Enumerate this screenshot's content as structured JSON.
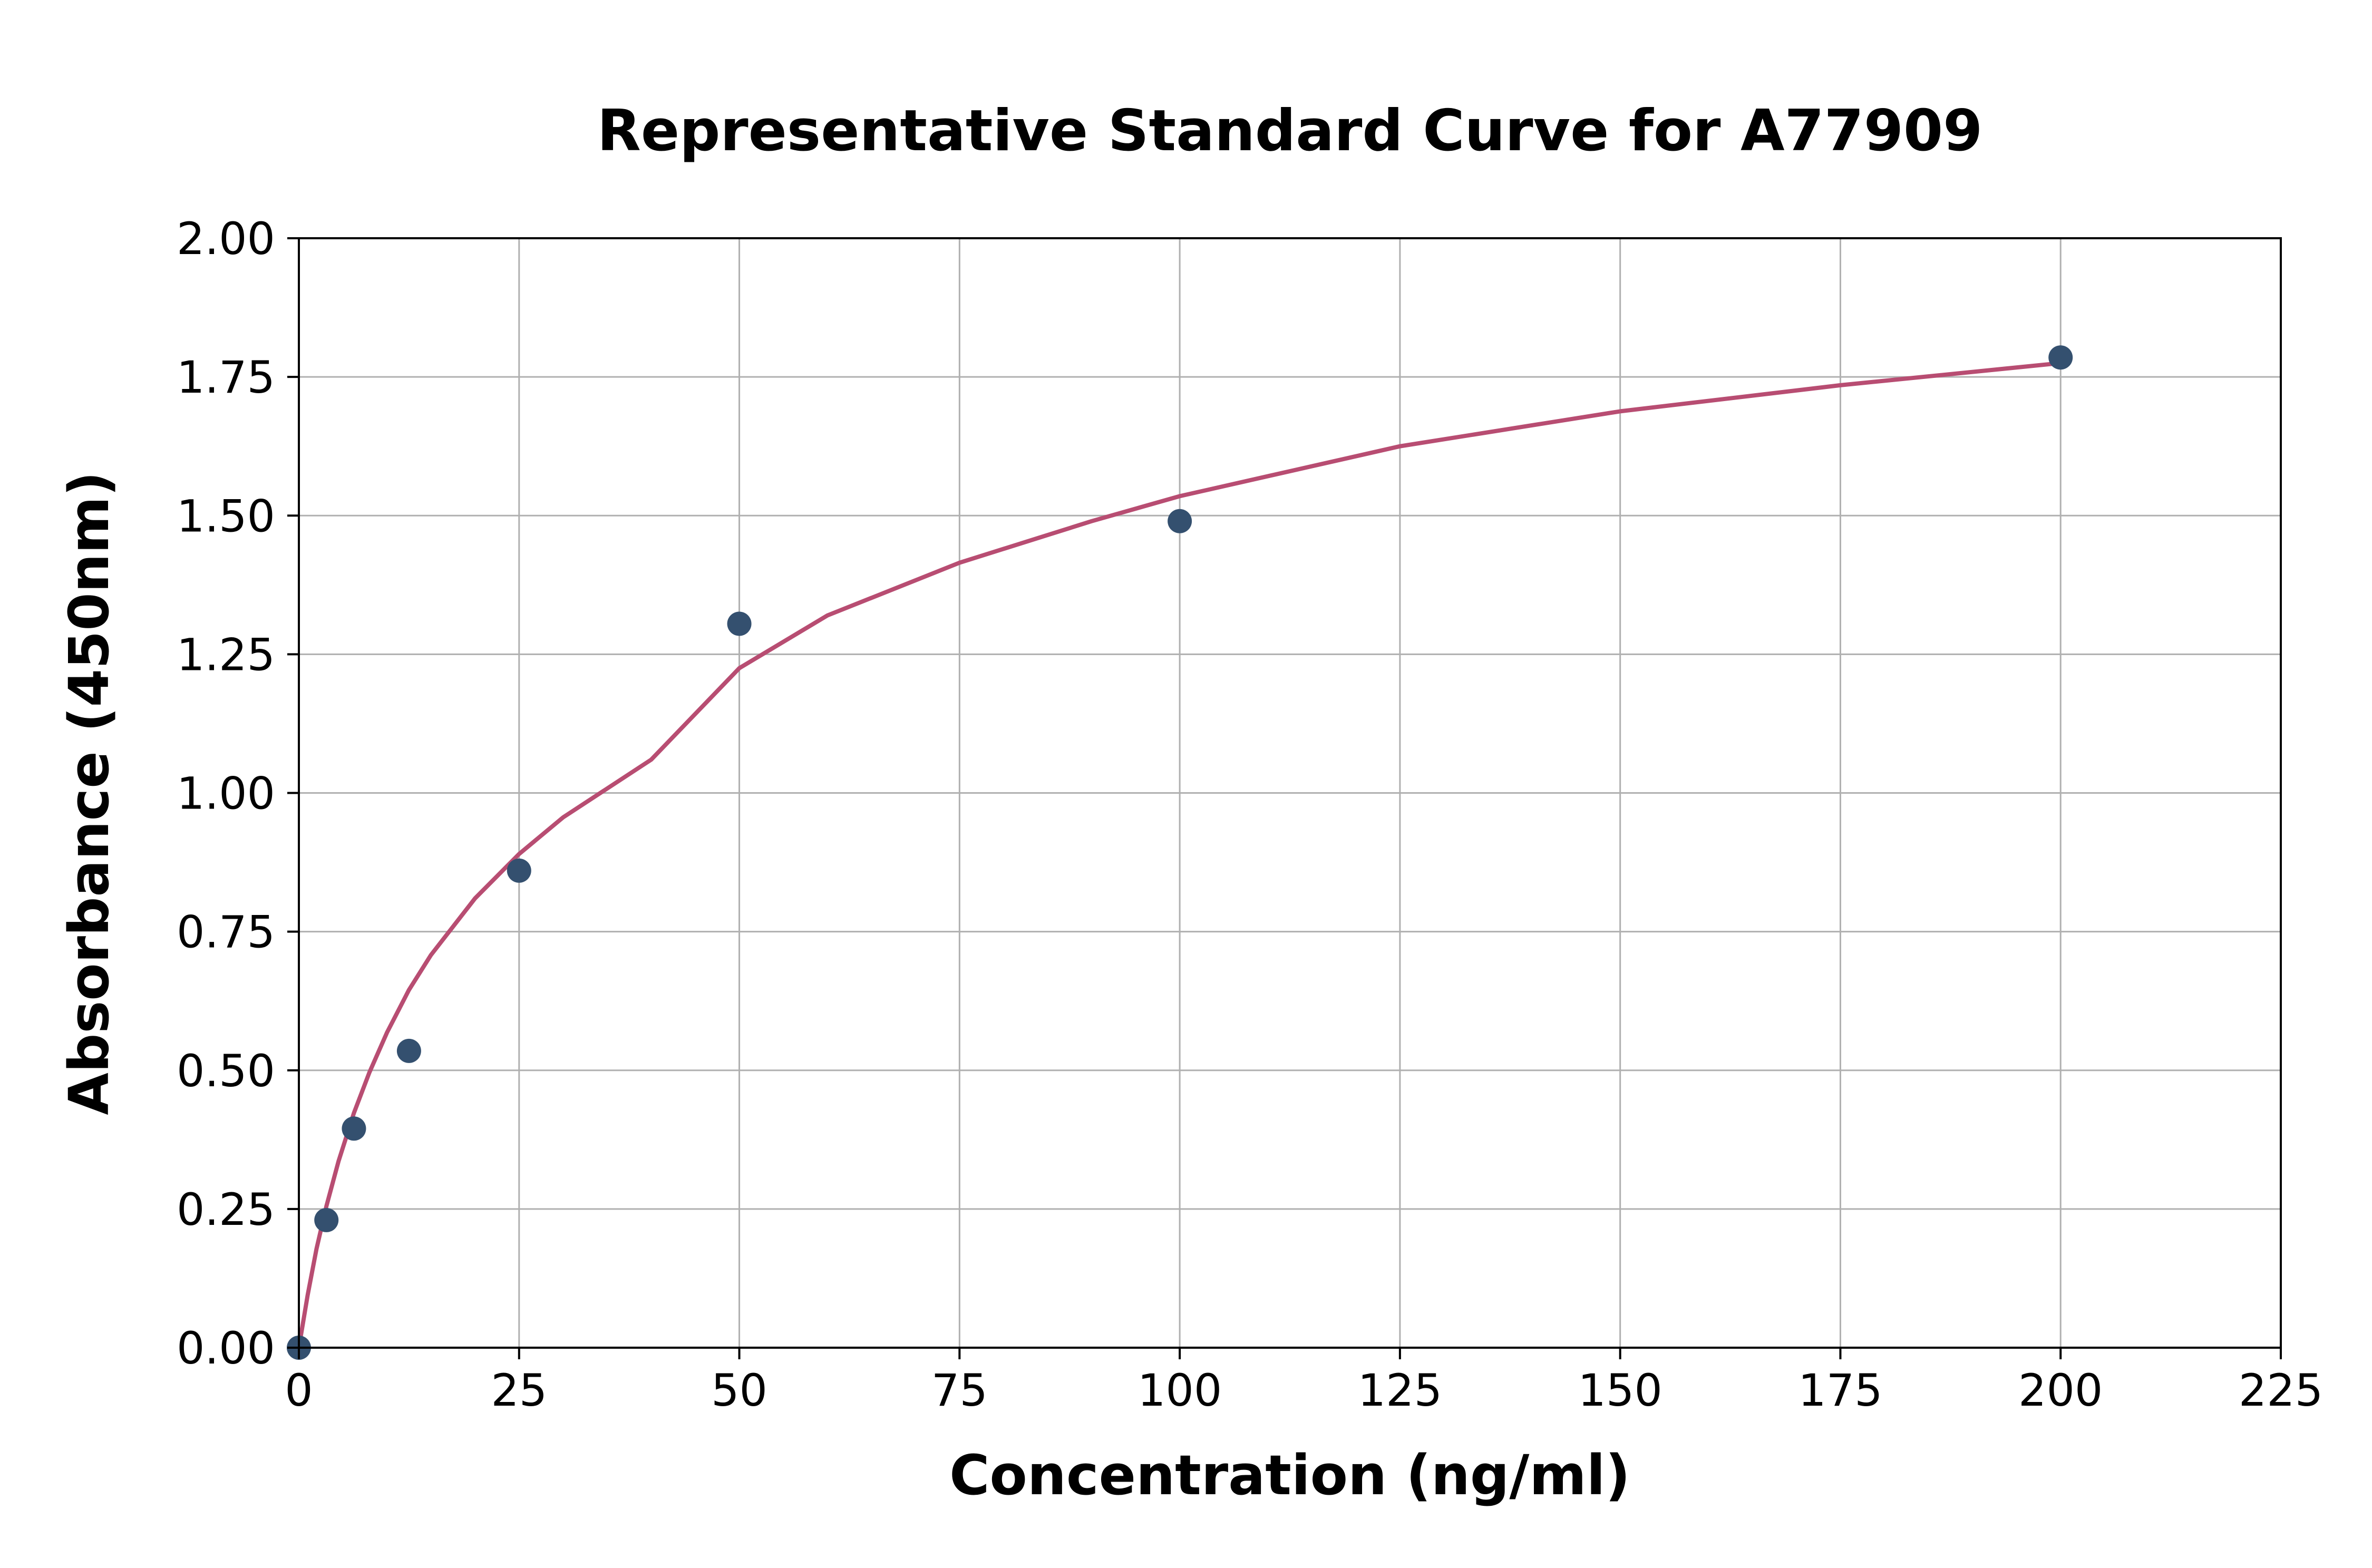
{
  "chart_data": {
    "type": "scatter",
    "title": "Representative Standard Curve for A77909",
    "xlabel": "Concentration (ng/ml)",
    "ylabel": "Absorbance (450nm)",
    "xlim": [
      0,
      225
    ],
    "ylim": [
      0,
      2.0
    ],
    "x_ticks": [
      "0",
      "25",
      "50",
      "75",
      "100",
      "125",
      "150",
      "175",
      "200",
      "225"
    ],
    "y_ticks": [
      "0.00",
      "0.25",
      "0.50",
      "0.75",
      "1.00",
      "1.25",
      "1.50",
      "1.75",
      "2.00"
    ],
    "x_tick_values": [
      0,
      25,
      50,
      75,
      100,
      125,
      150,
      175,
      200,
      225
    ],
    "y_tick_values": [
      0,
      0.25,
      0.5,
      0.75,
      1.0,
      1.25,
      1.5,
      1.75,
      2.0
    ],
    "grid": true,
    "legend": "none",
    "series": [
      {
        "type": "scatter",
        "color": "#34506f",
        "x": [
          0,
          3.125,
          6.25,
          12.5,
          25,
          50,
          100,
          200
        ],
        "y": [
          0.0,
          0.23,
          0.395,
          0.535,
          0.86,
          1.305,
          1.49,
          1.785
        ]
      },
      {
        "type": "line",
        "color": "#b84d72",
        "x": [
          0,
          1,
          2,
          3.125,
          4.5,
          6.25,
          8,
          10,
          12.5,
          15,
          20,
          25,
          30,
          40,
          50,
          60,
          75,
          90,
          100,
          125,
          150,
          175,
          200
        ],
        "y": [
          0.0,
          0.095,
          0.178,
          0.255,
          0.336,
          0.423,
          0.496,
          0.568,
          0.645,
          0.708,
          0.81,
          0.89,
          0.956,
          1.06,
          1.225,
          1.32,
          1.415,
          1.49,
          1.535,
          1.625,
          1.688,
          1.735,
          1.775
        ]
      }
    ]
  }
}
